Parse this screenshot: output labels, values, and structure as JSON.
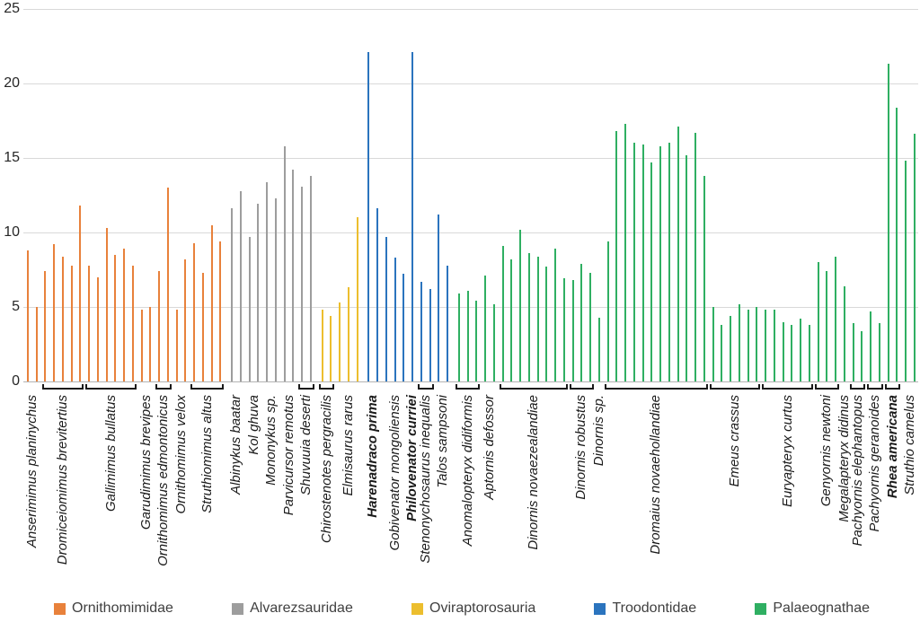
{
  "chart_data": {
    "type": "bar",
    "title": "",
    "xlabel": "",
    "ylabel": "",
    "ylim": [
      0,
      25
    ],
    "yticks": [
      0,
      5,
      10,
      15,
      20,
      25
    ],
    "grid": "horizontal",
    "legend_position": "bottom",
    "families": [
      {
        "name": "Ornithomimidae",
        "color": "#E8813B"
      },
      {
        "name": "Alvarezsauridae",
        "color": "#9D9D9D"
      },
      {
        "name": "Oviraptorosauria",
        "color": "#ECBE2E"
      },
      {
        "name": "Troodontidae",
        "color": "#2B74BE"
      },
      {
        "name": "Palaeognathae",
        "color": "#2FAF62"
      }
    ],
    "species": [
      {
        "label": "Anserimimus planinychus",
        "family": "Ornithomimidae",
        "values": [
          8.8,
          5.0
        ],
        "bracket": false,
        "bold": false
      },
      {
        "label": "Dromiceiomimus brevitertius",
        "family": "Ornithomimidae",
        "values": [
          7.4,
          9.2,
          8.4,
          7.8,
          11.8
        ],
        "bracket": true,
        "bold": false
      },
      {
        "label": "Gallimimus bullatus",
        "family": "Ornithomimidae",
        "values": [
          7.8,
          7.0,
          10.3,
          8.5,
          8.9,
          7.8
        ],
        "bracket": true,
        "bold": false
      },
      {
        "label": "Garudimimus brevipes",
        "family": "Ornithomimidae",
        "values": [
          4.8,
          5.0
        ],
        "bracket": false,
        "bold": false
      },
      {
        "label": "Ornithomimus edmontonicus",
        "family": "Ornithomimidae",
        "values": [
          7.4,
          13.0
        ],
        "bracket": true,
        "bold": false
      },
      {
        "label": "Ornithomimus velox",
        "family": "Ornithomimidae",
        "values": [
          4.8,
          8.2
        ],
        "bracket": false,
        "bold": false
      },
      {
        "label": "Struthiomimus altus",
        "family": "Ornithomimidae",
        "values": [
          9.3,
          7.3,
          10.5,
          9.4
        ],
        "bracket": true,
        "bold": false
      },
      {
        "label": "Albinykus baatar",
        "family": "Alvarezsauridae",
        "values": [
          11.6,
          12.8
        ],
        "bracket": false,
        "bold": false
      },
      {
        "label": "Kol ghuva",
        "family": "Alvarezsauridae",
        "values": [
          9.7,
          11.9
        ],
        "bracket": false,
        "bold": false
      },
      {
        "label": "Mononykus sp.",
        "family": "Alvarezsauridae",
        "values": [
          13.4,
          12.3
        ],
        "bracket": false,
        "bold": false
      },
      {
        "label": "Parvicursor remotus",
        "family": "Alvarezsauridae",
        "values": [
          15.8,
          14.2
        ],
        "bracket": false,
        "bold": false
      },
      {
        "label": "Shuvuuia deserti",
        "family": "Alvarezsauridae",
        "values": [
          13.1,
          13.8
        ],
        "bracket": true,
        "bold": false
      },
      {
        "label": "Chirostenotes pergracilis",
        "family": "Oviraptorosauria",
        "values": [
          4.8,
          4.4
        ],
        "bracket": true,
        "bold": false
      },
      {
        "label": "Elmisaurus rarus",
        "family": "Oviraptorosauria",
        "values": [
          5.3,
          6.3,
          11.0
        ],
        "bracket": false,
        "bold": false
      },
      {
        "label": "Harenadraco prima",
        "family": "Troodontidae",
        "values": [
          22.1,
          11.6
        ],
        "bracket": false,
        "bold": true
      },
      {
        "label": "Gobivenator mongoliensis",
        "family": "Troodontidae",
        "values": [
          9.7,
          8.3,
          7.2
        ],
        "bracket": false,
        "bold": false
      },
      {
        "label": "Philovenator curriei",
        "family": "Troodontidae",
        "values": [
          22.1
        ],
        "bracket": false,
        "bold": true
      },
      {
        "label": "Stenonychosaurus inequalis",
        "family": "Troodontidae",
        "values": [
          6.7,
          6.2
        ],
        "bracket": true,
        "bold": false
      },
      {
        "label": "Talos sampsoni",
        "family": "Troodontidae",
        "values": [
          11.2,
          7.8
        ],
        "bracket": false,
        "bold": false
      },
      {
        "label": "Anomalopteryx didiformis",
        "family": "Palaeognathae",
        "values": [
          5.9,
          6.1,
          5.4
        ],
        "bracket": true,
        "bold": false
      },
      {
        "label": "Aptornis defossor",
        "family": "Palaeognathae",
        "values": [
          7.1,
          5.2
        ],
        "bracket": false,
        "bold": false
      },
      {
        "label": "Dinornis novaezealandiae",
        "family": "Palaeognathae",
        "values": [
          9.1,
          8.2,
          10.2,
          8.6,
          8.4,
          7.7,
          8.9,
          6.9
        ],
        "bracket": true,
        "bold": false
      },
      {
        "label": "Dinornis robustus",
        "family": "Palaeognathae",
        "values": [
          6.8,
          7.9,
          7.3
        ],
        "bracket": true,
        "bold": false
      },
      {
        "label": "Dinornis sp.",
        "family": "Palaeognathae",
        "values": [
          4.3
        ],
        "bracket": false,
        "bold": false
      },
      {
        "label": "Dromaius novaehollandiae",
        "family": "Palaeognathae",
        "values": [
          9.4,
          16.8,
          17.3,
          16.0,
          15.9,
          14.7,
          15.8,
          16.0,
          17.1,
          15.2,
          16.7,
          13.8
        ],
        "bracket": true,
        "bold": false
      },
      {
        "label": "Emeus crassus",
        "family": "Palaeognathae",
        "values": [
          5.0,
          3.8,
          4.4,
          5.2,
          4.8,
          5.0
        ],
        "bracket": true,
        "bold": false
      },
      {
        "label": "Euryapteryx curtus",
        "family": "Palaeognathae",
        "values": [
          4.8,
          4.8,
          4.0,
          3.8,
          4.2,
          3.8
        ],
        "bracket": true,
        "bold": false
      },
      {
        "label": "Genyornis newtoni",
        "family": "Palaeognathae",
        "values": [
          8.0,
          7.4,
          8.4
        ],
        "bracket": true,
        "bold": false
      },
      {
        "label": "Megalapteryx didinus",
        "family": "Palaeognathae",
        "values": [
          6.4
        ],
        "bracket": false,
        "bold": false
      },
      {
        "label": "Pachyornis elephantopus",
        "family": "Palaeognathae",
        "values": [
          3.9,
          3.4
        ],
        "bracket": true,
        "bold": false
      },
      {
        "label": "Pachyornis geranoides",
        "family": "Palaeognathae",
        "values": [
          4.7,
          3.9
        ],
        "bracket": true,
        "bold": false
      },
      {
        "label": "Rhea americana",
        "family": "Palaeognathae",
        "values": [
          21.3,
          18.4
        ],
        "bracket": true,
        "bold": true
      },
      {
        "label": "Struthio camelus",
        "family": "Palaeognathae",
        "values": [
          14.8,
          16.6
        ],
        "bracket": false,
        "bold": false
      }
    ]
  }
}
